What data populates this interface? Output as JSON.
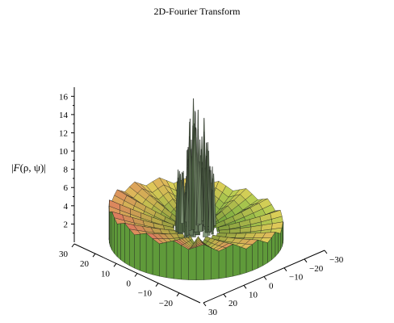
{
  "chart_data": {
    "type": "surface3d",
    "title": "2D-Fourier Transform",
    "zlabel": {
      "bar": "|",
      "func": "F",
      "args": "(ρ, ψ)"
    },
    "z_ticks": [
      2,
      4,
      6,
      8,
      10,
      12,
      14,
      16
    ],
    "z_range": [
      0,
      17
    ],
    "x_ticks": [
      "30",
      "20",
      "10",
      "0",
      "−10",
      "−20"
    ],
    "y_ticks": [
      "30",
      "20",
      "10",
      "0",
      "−10",
      "−20",
      "−30"
    ],
    "x_range": [
      -30,
      30
    ],
    "y_range": [
      -30,
      30
    ],
    "surface": {
      "outer_radius": 30,
      "inner_radius": 8,
      "central_peak_max": 17,
      "colors": {
        "low": "#7fcf4a",
        "mid": "#e3d35a",
        "high": "#e08060"
      }
    }
  }
}
